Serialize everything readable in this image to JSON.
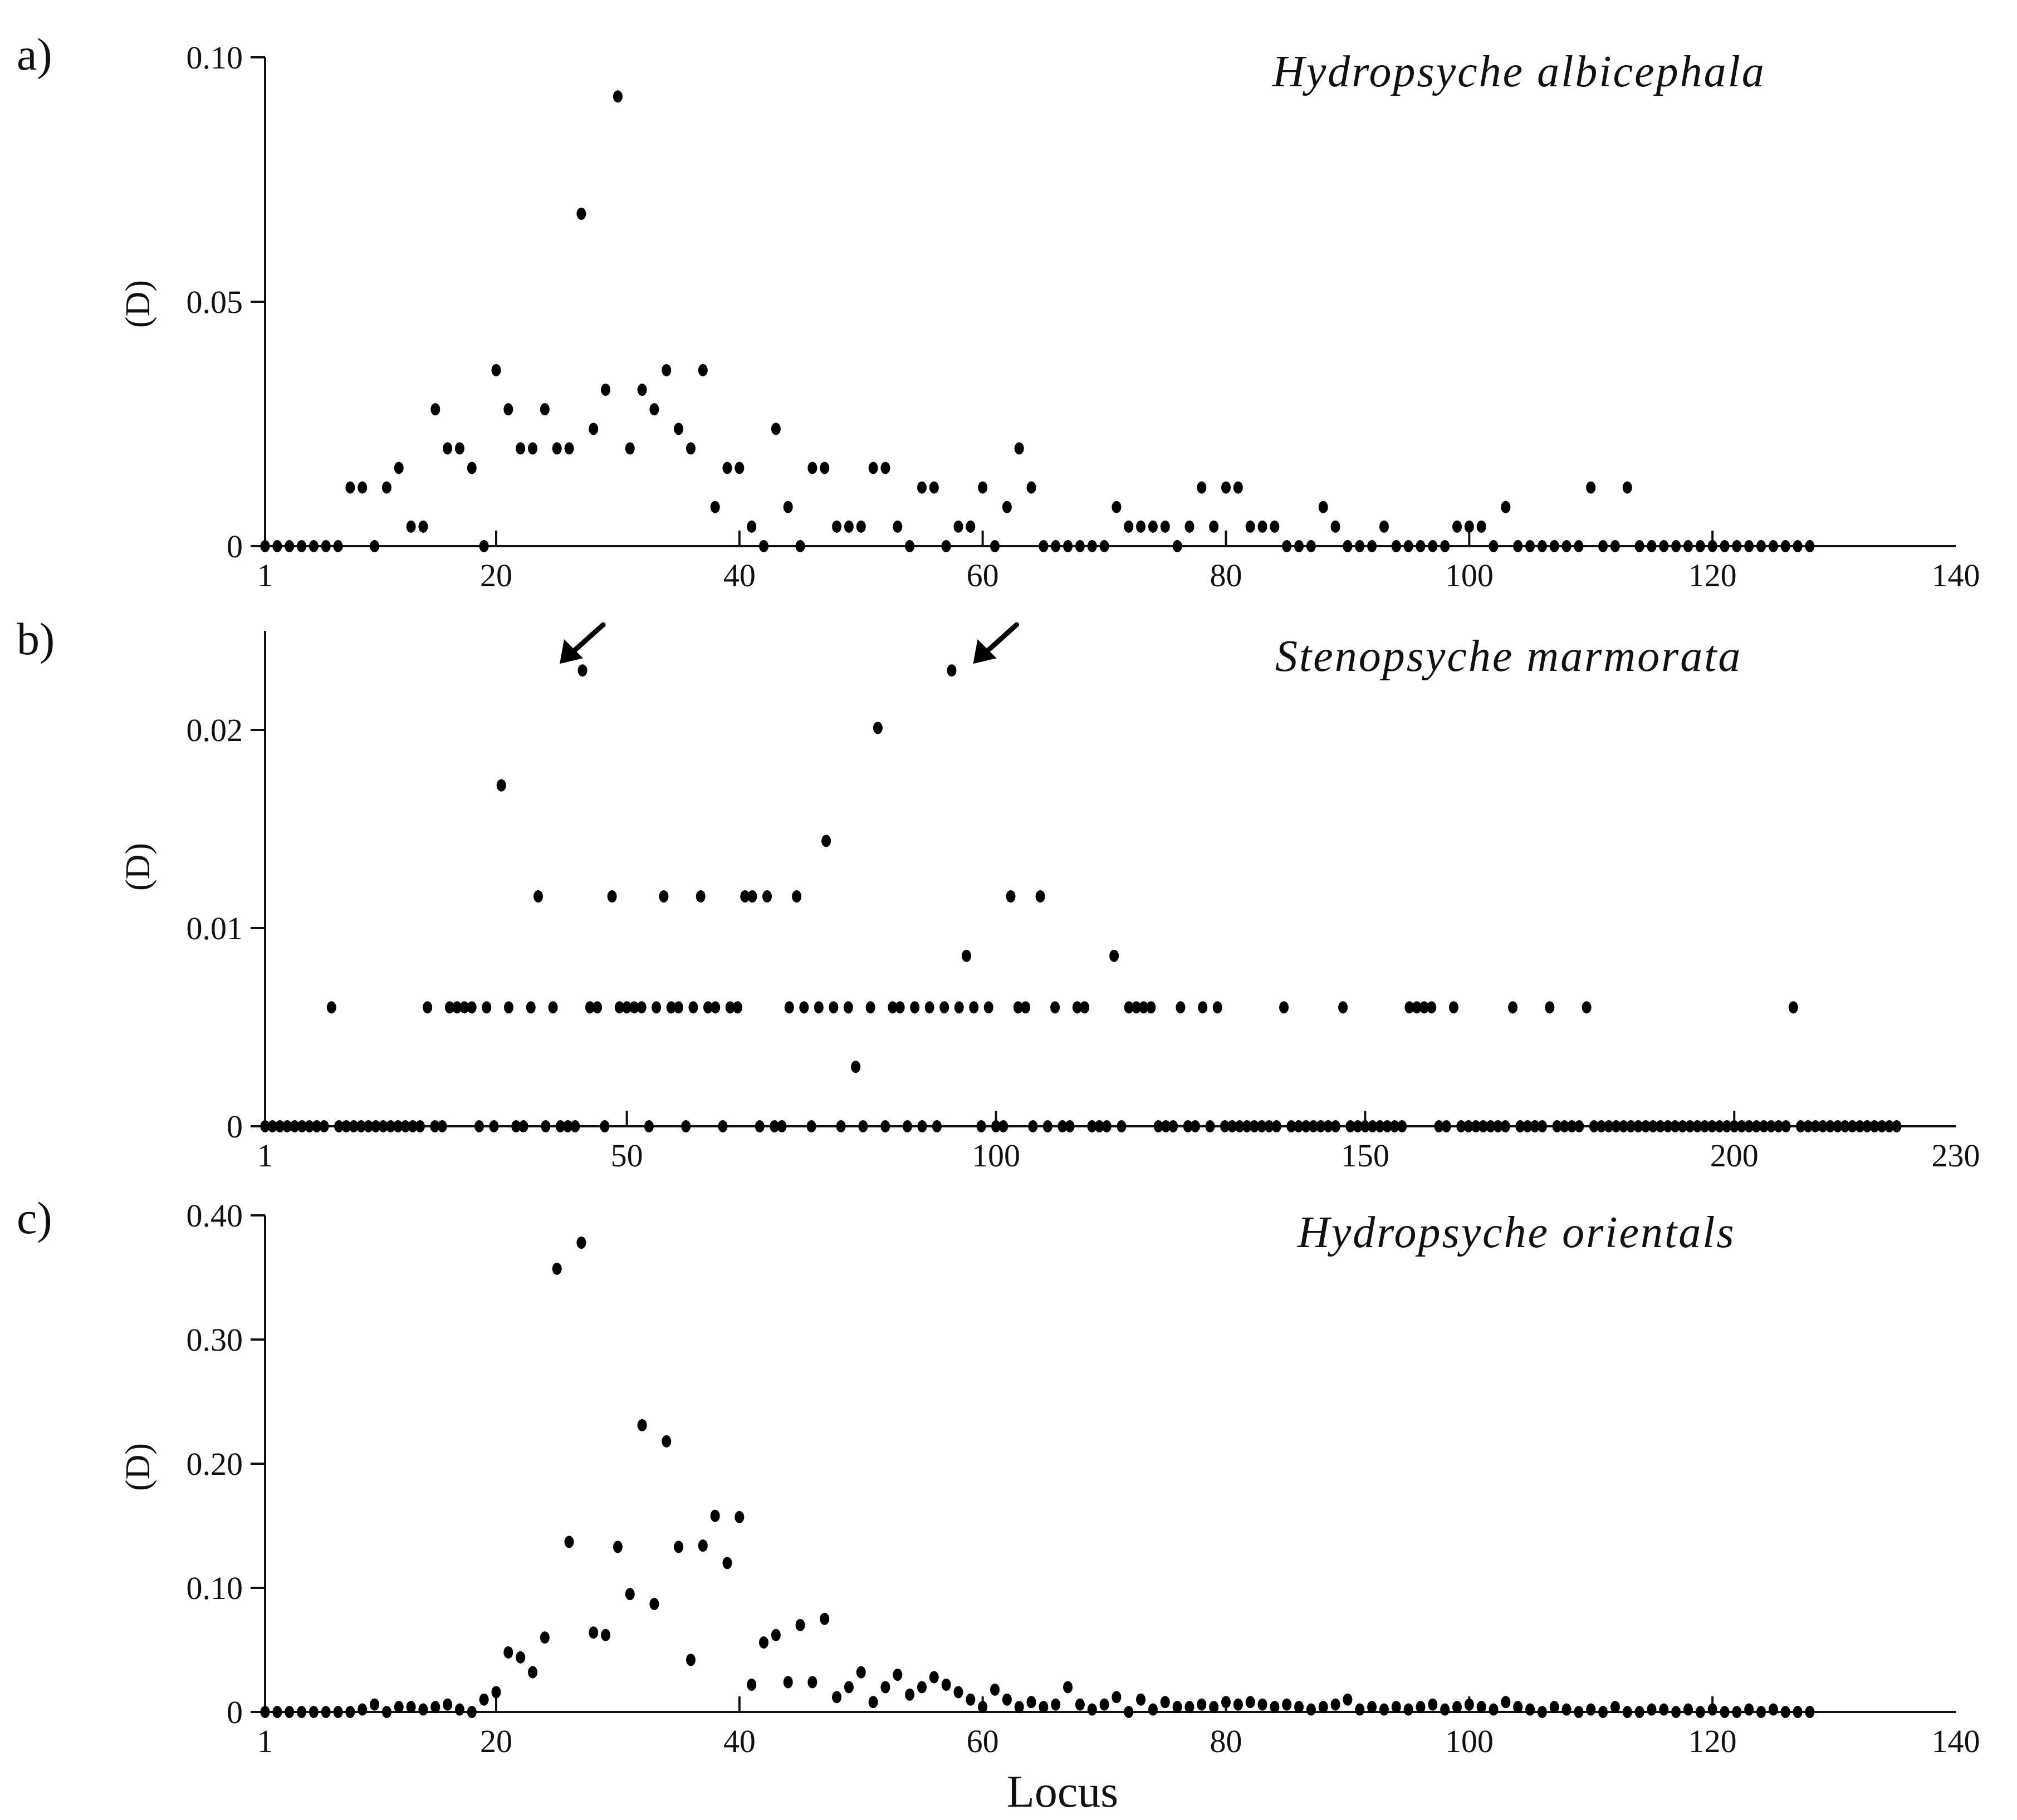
{
  "chart_data": [
    {
      "type": "scatter",
      "panel": "a)",
      "species": "Hydropsyche albicephala",
      "ylabel": "(D)",
      "xlabel": "",
      "xlim": [
        1,
        140
      ],
      "ylim": [
        0,
        0.1
      ],
      "xticks": [
        1,
        20,
        40,
        60,
        80,
        100,
        120,
        140
      ],
      "yticks": [
        {
          "v": 0,
          "label": "0"
        },
        {
          "v": 0.05,
          "label": "0.05"
        },
        {
          "v": 0.1,
          "label": "0.10"
        }
      ],
      "x": [
        1,
        2,
        3,
        4,
        5,
        6,
        7,
        8,
        9,
        10,
        11,
        12,
        13,
        14,
        15,
        16,
        17,
        18,
        19,
        20,
        21,
        22,
        23,
        24,
        25,
        26,
        27,
        28,
        29,
        30,
        31,
        32,
        33,
        34,
        35,
        36,
        37,
        38,
        39,
        40,
        41,
        42,
        43,
        44,
        45,
        46,
        47,
        48,
        49,
        50,
        51,
        52,
        53,
        54,
        55,
        56,
        57,
        58,
        59,
        60,
        61,
        62,
        63,
        64,
        65,
        66,
        67,
        68,
        69,
        70,
        71,
        72,
        73,
        74,
        75,
        76,
        77,
        78,
        79,
        80,
        81,
        82,
        83,
        84,
        85,
        86,
        87,
        88,
        89,
        90,
        91,
        92,
        93,
        94,
        95,
        96,
        97,
        98,
        99,
        100,
        101,
        102,
        103,
        104,
        105,
        106,
        107,
        108,
        109,
        110,
        111,
        112,
        113,
        114,
        115,
        116,
        117,
        118,
        119,
        120,
        121,
        122,
        123,
        124,
        125,
        126,
        127,
        128
      ],
      "y": [
        0,
        0,
        0,
        0,
        0,
        0,
        0,
        0.012,
        0.012,
        0,
        0.012,
        0.016,
        0.004,
        0.004,
        0.028,
        0.02,
        0.02,
        0.016,
        0,
        0.036,
        0.028,
        0.02,
        0.02,
        0.028,
        0.02,
        0.02,
        0.068,
        0.024,
        0.032,
        0.092,
        0.02,
        0.032,
        0.028,
        0.036,
        0.024,
        0.02,
        0.036,
        0.008,
        0.016,
        0.016,
        0.004,
        0,
        0.024,
        0.008,
        0,
        0.016,
        0.016,
        0.004,
        0.004,
        0.004,
        0.016,
        0.016,
        0.004,
        0,
        0.012,
        0.012,
        0,
        0.004,
        0.004,
        0.012,
        0,
        0.008,
        0.02,
        0.012,
        0,
        0,
        0,
        0,
        0,
        0,
        0.008,
        0.004,
        0.004,
        0.004,
        0.004,
        0,
        0.004,
        0.012,
        0.004,
        0.012,
        0.012,
        0.004,
        0.004,
        0.004,
        0,
        0,
        0,
        0.008,
        0.004,
        0,
        0,
        0,
        0.004,
        0,
        0,
        0,
        0,
        0,
        0.004,
        0.004,
        0.004,
        0,
        0.008,
        0,
        0,
        0,
        0,
        0,
        0,
        0.012,
        0,
        0,
        0.012,
        0,
        0,
        0,
        0,
        0,
        0,
        0,
        0,
        0,
        0,
        0,
        0,
        0,
        0,
        0
      ]
    },
    {
      "type": "scatter",
      "panel": "b)",
      "species": "Stenopsyche marmorata",
      "ylabel": "(D)",
      "xlabel": "",
      "xlim": [
        1,
        230
      ],
      "ylim": [
        0,
        0.025
      ],
      "xticks": [
        1,
        50,
        100,
        150,
        200,
        230
      ],
      "yticks": [
        {
          "v": 0,
          "label": "0"
        },
        {
          "v": 0.01,
          "label": "0.01"
        },
        {
          "v": 0.02,
          "label": "0.02"
        }
      ],
      "x": [
        10,
        23,
        26,
        27,
        28,
        29,
        31,
        33,
        34,
        37,
        38,
        40,
        44,
        45,
        46,
        48,
        49,
        50,
        51,
        52,
        54,
        55,
        56,
        57,
        59,
        60,
        61,
        62,
        64,
        65,
        66,
        67,
        69,
        72,
        73,
        74,
        76,
        77,
        78,
        80,
        81,
        83,
        84,
        86,
        87,
        89,
        91,
        93,
        94,
        95,
        96,
        97,
        99,
        102,
        103,
        104,
        106,
        108,
        111,
        112,
        116,
        118,
        119,
        120,
        121,
        125,
        128,
        130,
        139,
        147,
        156,
        157,
        158,
        159,
        162,
        170,
        175,
        180,
        208
      ],
      "y": [
        0.006,
        0.006,
        0.006,
        0.006,
        0.006,
        0.006,
        0.006,
        0.0172,
        0.006,
        0.006,
        0.0116,
        0.006,
        0.023,
        0.006,
        0.006,
        0.0116,
        0.006,
        0.006,
        0.006,
        0.006,
        0.006,
        0.0116,
        0.006,
        0.006,
        0.006,
        0.0116,
        0.006,
        0.006,
        0.006,
        0.006,
        0.0116,
        0.0116,
        0.0116,
        0.006,
        0.0116,
        0.006,
        0.006,
        0.0144,
        0.006,
        0.006,
        0.003,
        0.006,
        0.0201,
        0.006,
        0.006,
        0.006,
        0.006,
        0.006,
        0.023,
        0.006,
        0.0086,
        0.006,
        0.006,
        0.0116,
        0.006,
        0.006,
        0.0116,
        0.006,
        0.006,
        0.006,
        0.0086,
        0.006,
        0.006,
        0.006,
        0.006,
        0.006,
        0.006,
        0.006,
        0.006,
        0.006,
        0.006,
        0.006,
        0.006,
        0.006,
        0.006,
        0.006,
        0.006,
        0.006,
        0.006
      ],
      "zero_loci": "all other loci 1-222 lie at 0",
      "n_loci": 222,
      "arrows_at": [
        40,
        96
      ]
    },
    {
      "type": "scatter",
      "panel": "c)",
      "species": "Hydropsyche orientals",
      "ylabel": "(D)",
      "xlabel": "Locus",
      "xlim": [
        1,
        140
      ],
      "ylim": [
        0,
        0.4
      ],
      "xticks": [
        1,
        20,
        40,
        60,
        80,
        100,
        120,
        140
      ],
      "yticks": [
        {
          "v": 0,
          "label": "0"
        },
        {
          "v": 0.1,
          "label": "0.10"
        },
        {
          "v": 0.2,
          "label": "0.20"
        },
        {
          "v": 0.3,
          "label": "0.30"
        },
        {
          "v": 0.4,
          "label": "0.40"
        }
      ],
      "x": [
        1,
        2,
        3,
        4,
        5,
        6,
        7,
        8,
        9,
        10,
        11,
        12,
        13,
        14,
        15,
        16,
        17,
        18,
        19,
        20,
        21,
        22,
        23,
        24,
        25,
        26,
        27,
        28,
        29,
        30,
        31,
        32,
        33,
        34,
        35,
        36,
        37,
        38,
        39,
        40,
        41,
        42,
        43,
        44,
        45,
        46,
        47,
        48,
        49,
        50,
        51,
        52,
        53,
        54,
        55,
        56,
        57,
        58,
        59,
        60,
        61,
        62,
        63,
        64,
        65,
        66,
        67,
        68,
        69,
        70,
        71,
        72,
        73,
        74,
        75,
        76,
        77,
        78,
        79,
        80,
        81,
        82,
        83,
        84,
        85,
        86,
        87,
        88,
        89,
        90,
        91,
        92,
        93,
        94,
        95,
        96,
        97,
        98,
        99,
        100,
        101,
        102,
        103,
        104,
        105,
        106,
        107,
        108,
        109,
        110,
        111,
        112,
        113,
        114,
        115,
        116,
        117,
        118,
        119,
        120,
        121,
        122,
        123,
        124,
        125,
        126,
        127,
        128
      ],
      "y": [
        0,
        0,
        0,
        0,
        0,
        0,
        0,
        0,
        0.002,
        0.006,
        0,
        0.004,
        0.004,
        0.002,
        0.004,
        0.006,
        0.002,
        0,
        0.01,
        0.016,
        0.048,
        0.044,
        0.032,
        0.06,
        0.357,
        0.137,
        0.378,
        0.064,
        0.062,
        0.133,
        0.095,
        0.231,
        0.087,
        0.218,
        0.133,
        0.042,
        0.134,
        0.158,
        0.12,
        0.157,
        0.022,
        0.056,
        0.062,
        0.024,
        0.07,
        0.024,
        0.075,
        0.012,
        0.02,
        0.032,
        0.008,
        0.02,
        0.03,
        0.014,
        0.02,
        0.028,
        0.022,
        0.016,
        0.01,
        0.004,
        0.018,
        0.01,
        0.004,
        0.008,
        0.004,
        0.006,
        0.02,
        0.006,
        0.002,
        0.006,
        0.012,
        0,
        0.01,
        0.002,
        0.008,
        0.004,
        0.004,
        0.006,
        0.004,
        0.008,
        0.006,
        0.008,
        0.006,
        0.004,
        0.006,
        0.004,
        0.002,
        0.004,
        0.006,
        0.01,
        0.002,
        0.004,
        0.002,
        0.004,
        0.002,
        0.004,
        0.006,
        0.002,
        0.004,
        0.006,
        0.004,
        0.002,
        0.008,
        0.004,
        0.002,
        0,
        0.004,
        0.002,
        0,
        0.002,
        0,
        0.004,
        0,
        0,
        0.002,
        0.002,
        0,
        0.002,
        0,
        0.002,
        0,
        0,
        0.002,
        0,
        0.002,
        0,
        0,
        0
      ]
    }
  ]
}
